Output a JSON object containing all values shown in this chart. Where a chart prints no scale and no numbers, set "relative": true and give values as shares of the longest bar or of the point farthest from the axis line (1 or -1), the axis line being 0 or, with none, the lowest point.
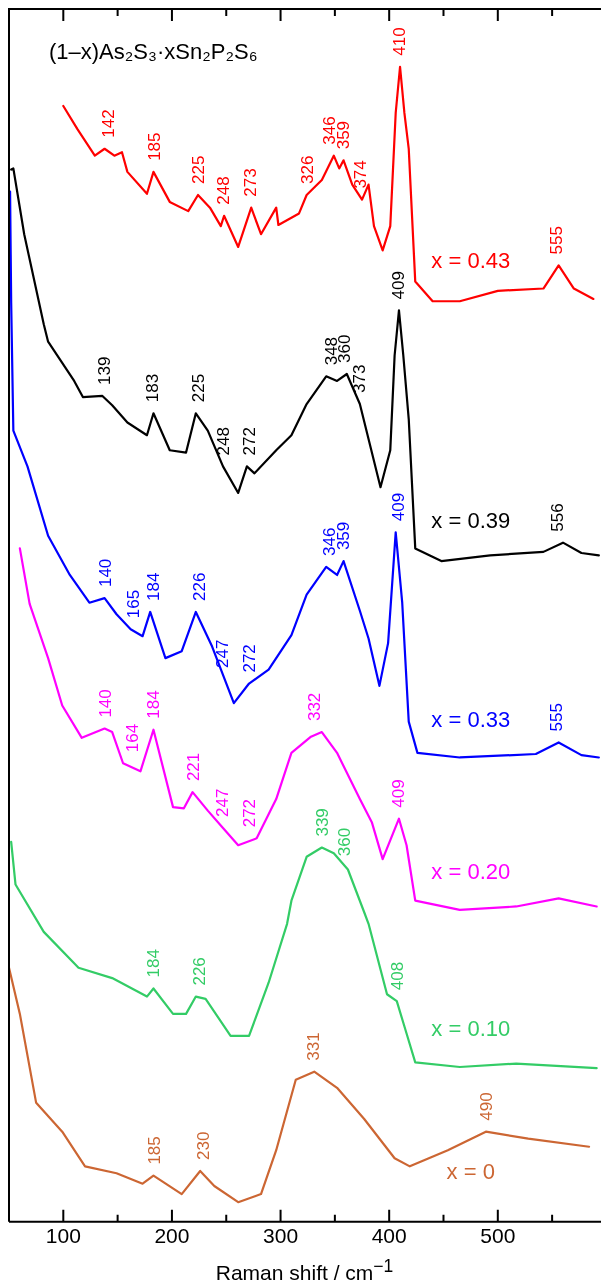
{
  "chart_data": {
    "type": "line",
    "title": "(1–x)As₂S₃·xSn₂P₂S₆",
    "xlabel": "Raman shift / cm$^{−1}$",
    "relative": true,
    "grid": false,
    "legend": false,
    "marker": "none",
    "xlim": [
      50,
      595
    ],
    "xticks": [
      100,
      {
        "value": 150,
        "label": null
      },
      200,
      {
        "value": 250,
        "label": null
      },
      300,
      {
        "value": 350,
        "label": null
      },
      400,
      {
        "value": 450,
        "label": null
      },
      500,
      {
        "value": 550,
        "label": null
      }
    ],
    "series": [
      {
        "name": "x = 0.43",
        "color": "#ff0000",
        "x": [
          100,
          113,
          129,
          138,
          147,
          154,
          159,
          177,
          183,
          198,
          215,
          224,
          235,
          245,
          248,
          261,
          273,
          282,
          296,
          298,
          317,
          324,
          338,
          349,
          354,
          358,
          366,
          375,
          381,
          386,
          394,
          401,
          406,
          410,
          414,
          418,
          424,
          440,
          465,
          500,
          542,
          556,
          570,
          588
        ],
        "values": [
          0.966,
          0.946,
          0.923,
          0.929,
          0.923,
          0.926,
          0.909,
          0.89,
          0.909,
          0.883,
          0.875,
          0.889,
          0.878,
          0.862,
          0.871,
          0.844,
          0.878,
          0.855,
          0.878,
          0.863,
          0.873,
          0.889,
          0.902,
          0.923,
          0.912,
          0.919,
          0.898,
          0.885,
          0.898,
          0.862,
          0.841,
          0.862,
          0.96,
          1,
          0.96,
          0.929,
          0.814,
          0.797,
          0.797,
          0.806,
          0.808,
          0.828,
          0.808,
          0.799
        ]
      },
      {
        "name": "x = 0.39",
        "color": "#000000",
        "x": [
          52,
          54,
          64,
          82,
          86,
          110,
          118,
          136,
          145,
          159,
          177,
          183,
          198,
          213,
          222,
          233,
          247,
          261,
          269,
          276,
          296,
          310,
          324,
          342,
          352,
          361,
          373,
          392,
          401,
          405,
          409,
          413,
          418,
          424,
          448,
          493,
          542,
          560,
          577,
          593
        ],
        "values": [
          0.911,
          0.912,
          0.855,
          0.777,
          0.762,
          0.728,
          0.714,
          0.715,
          0.707,
          0.692,
          0.681,
          0.7,
          0.668,
          0.666,
          0.7,
          0.685,
          0.654,
          0.631,
          0.654,
          0.648,
          0.668,
          0.681,
          0.708,
          0.732,
          0.728,
          0.734,
          0.708,
          0.636,
          0.668,
          0.75,
          0.789,
          0.75,
          0.695,
          0.583,
          0.572,
          0.577,
          0.58,
          0.588,
          0.579,
          0.577
        ]
      },
      {
        "name": "x = 0.33",
        "color": "#0000ff",
        "x": [
          51,
          52,
          54,
          67,
          86,
          106,
          124,
          138,
          149,
          162,
          173,
          180,
          194,
          209,
          222,
          237,
          257,
          271,
          289,
          310,
          324,
          342,
          352,
          358,
          373,
          381,
          391,
          399,
          406,
          412,
          418,
          426,
          465,
          535,
          556,
          577,
          593
        ],
        "values": [
          0.892,
          0.796,
          0.685,
          0.654,
          0.594,
          0.56,
          0.536,
          0.54,
          0.526,
          0.513,
          0.507,
          0.528,
          0.488,
          0.494,
          0.528,
          0.498,
          0.449,
          0.466,
          0.478,
          0.508,
          0.543,
          0.567,
          0.56,
          0.572,
          0.529,
          0.505,
          0.464,
          0.501,
          0.597,
          0.536,
          0.433,
          0.406,
          0.402,
          0.405,
          0.415,
          0.404,
          0.402
        ]
      },
      {
        "name": "x = 0.20",
        "color": "#ff00ff",
        "x": [
          60,
          69,
          86,
          99,
          117,
          138,
          145,
          155,
          171,
          183,
          201,
          211,
          219,
          233,
          247,
          261,
          278,
          296,
          310,
          328,
          338,
          352,
          373,
          384,
          394,
          409,
          416,
          424,
          465,
          517,
          556,
          591
        ],
        "values": [
          0.583,
          0.535,
          0.488,
          0.447,
          0.419,
          0.427,
          0.424,
          0.397,
          0.39,
          0.426,
          0.359,
          0.358,
          0.372,
          0.356,
          0.341,
          0.326,
          0.332,
          0.366,
          0.406,
          0.42,
          0.424,
          0.406,
          0.366,
          0.346,
          0.314,
          0.349,
          0.326,
          0.278,
          0.27,
          0.273,
          0.28,
          0.273
        ]
      },
      {
        "name": "x = 0.10",
        "color": "#33cc66",
        "x": [
          52,
          56,
          82,
          114,
          145,
          177,
          183,
          201,
          213,
          222,
          231,
          254,
          271,
          289,
          306,
          310,
          324,
          338,
          349,
          362,
          377,
          381,
          398,
          407,
          416,
          424,
          465,
          517,
          591
        ],
        "values": [
          0.329,
          0.292,
          0.251,
          0.22,
          0.211,
          0.195,
          0.202,
          0.18,
          0.18,
          0.195,
          0.193,
          0.161,
          0.161,
          0.207,
          0.258,
          0.278,
          0.316,
          0.324,
          0.319,
          0.305,
          0.268,
          0.258,
          0.197,
          0.191,
          0.163,
          0.138,
          0.134,
          0.137,
          0.133
        ]
      },
      {
        "name": "x = 0",
        "color": "#cc6633",
        "x": [
          50,
          60,
          75,
          99,
          120,
          149,
          173,
          183,
          209,
          226,
          239,
          261,
          282,
          296,
          314,
          331,
          352,
          377,
          405,
          419,
          454,
          489,
          528,
          584
        ],
        "values": [
          0.22,
          0.18,
          0.103,
          0.078,
          0.048,
          0.042,
          0.033,
          0.04,
          0.024,
          0.044,
          0.031,
          0.017,
          0.024,
          0.062,
          0.123,
          0.13,
          0.116,
          0.089,
          0.055,
          0.048,
          0.062,
          0.078,
          0.072,
          0.065
        ]
      }
    ],
    "annotations": [
      {
        "text": "142",
        "x": 142,
        "y": 0.929
      },
      {
        "text": "185",
        "x": 185,
        "y": 0.909
      },
      {
        "text": "225",
        "x": 225,
        "y": 0.889
      },
      {
        "text": "248",
        "x": 248,
        "y": 0.871
      },
      {
        "text": "273",
        "x": 273,
        "y": 0.878
      },
      {
        "text": "326",
        "x": 326,
        "y": 0.889
      },
      {
        "text": "346",
        "x": 346,
        "y": 0.923
      },
      {
        "text": "359",
        "x": 359,
        "y": 0.919
      },
      {
        "text": "374",
        "x": 374,
        "y": 0.885
      },
      {
        "text": "410",
        "x": 410,
        "y": 1
      },
      {
        "text": "555",
        "x": 555,
        "y": 0.828
      },
      {
        "text": "139",
        "x": 139,
        "y": 0.715
      },
      {
        "text": "183",
        "x": 183,
        "y": 0.7
      },
      {
        "text": "225",
        "x": 225,
        "y": 0.7
      },
      {
        "text": "248",
        "x": 248,
        "y": 0.654
      },
      {
        "text": "272",
        "x": 272,
        "y": 0.654
      },
      {
        "text": "348",
        "x": 348,
        "y": 0.732
      },
      {
        "text": "360",
        "x": 360,
        "y": 0.734
      },
      {
        "text": "373",
        "x": 373,
        "y": 0.708
      },
      {
        "text": "409",
        "x": 409,
        "y": 0.789
      },
      {
        "text": "556",
        "x": 556,
        "y": 0.588
      },
      {
        "text": "140",
        "x": 140,
        "y": 0.54
      },
      {
        "text": "165",
        "x": 165,
        "y": 0.513
      },
      {
        "text": "184",
        "x": 184,
        "y": 0.528
      },
      {
        "text": "226",
        "x": 226,
        "y": 0.528
      },
      {
        "text": "247",
        "x": 247,
        "y": 0.47
      },
      {
        "text": "272",
        "x": 272,
        "y": 0.466
      },
      {
        "text": "346",
        "x": 346,
        "y": 0.567
      },
      {
        "text": "359",
        "x": 359,
        "y": 0.572
      },
      {
        "text": "409",
        "x": 409,
        "y": 0.597
      },
      {
        "text": "555",
        "x": 555,
        "y": 0.415
      },
      {
        "text": "140",
        "x": 140,
        "y": 0.427
      },
      {
        "text": "164",
        "x": 164,
        "y": 0.397
      },
      {
        "text": "184",
        "x": 184,
        "y": 0.426
      },
      {
        "text": "221",
        "x": 221,
        "y": 0.372
      },
      {
        "text": "247",
        "x": 247,
        "y": 0.341
      },
      {
        "text": "272",
        "x": 272,
        "y": 0.332
      },
      {
        "text": "332",
        "x": 332,
        "y": 0.424
      },
      {
        "text": "409",
        "x": 409,
        "y": 0.349
      },
      {
        "text": "184",
        "x": 184,
        "y": 0.202
      },
      {
        "text": "226",
        "x": 226,
        "y": 0.195
      },
      {
        "text": "339",
        "x": 339,
        "y": 0.324
      },
      {
        "text": "360",
        "x": 360,
        "y": 0.307
      },
      {
        "text": "408",
        "x": 408,
        "y": 0.191
      },
      {
        "text": "185",
        "x": 185,
        "y": 0.04
      },
      {
        "text": "230",
        "x": 230,
        "y": 0.044
      },
      {
        "text": "331",
        "x": 331,
        "y": 0.13
      },
      {
        "text": "490",
        "x": 490,
        "y": 0.078
      }
    ]
  }
}
